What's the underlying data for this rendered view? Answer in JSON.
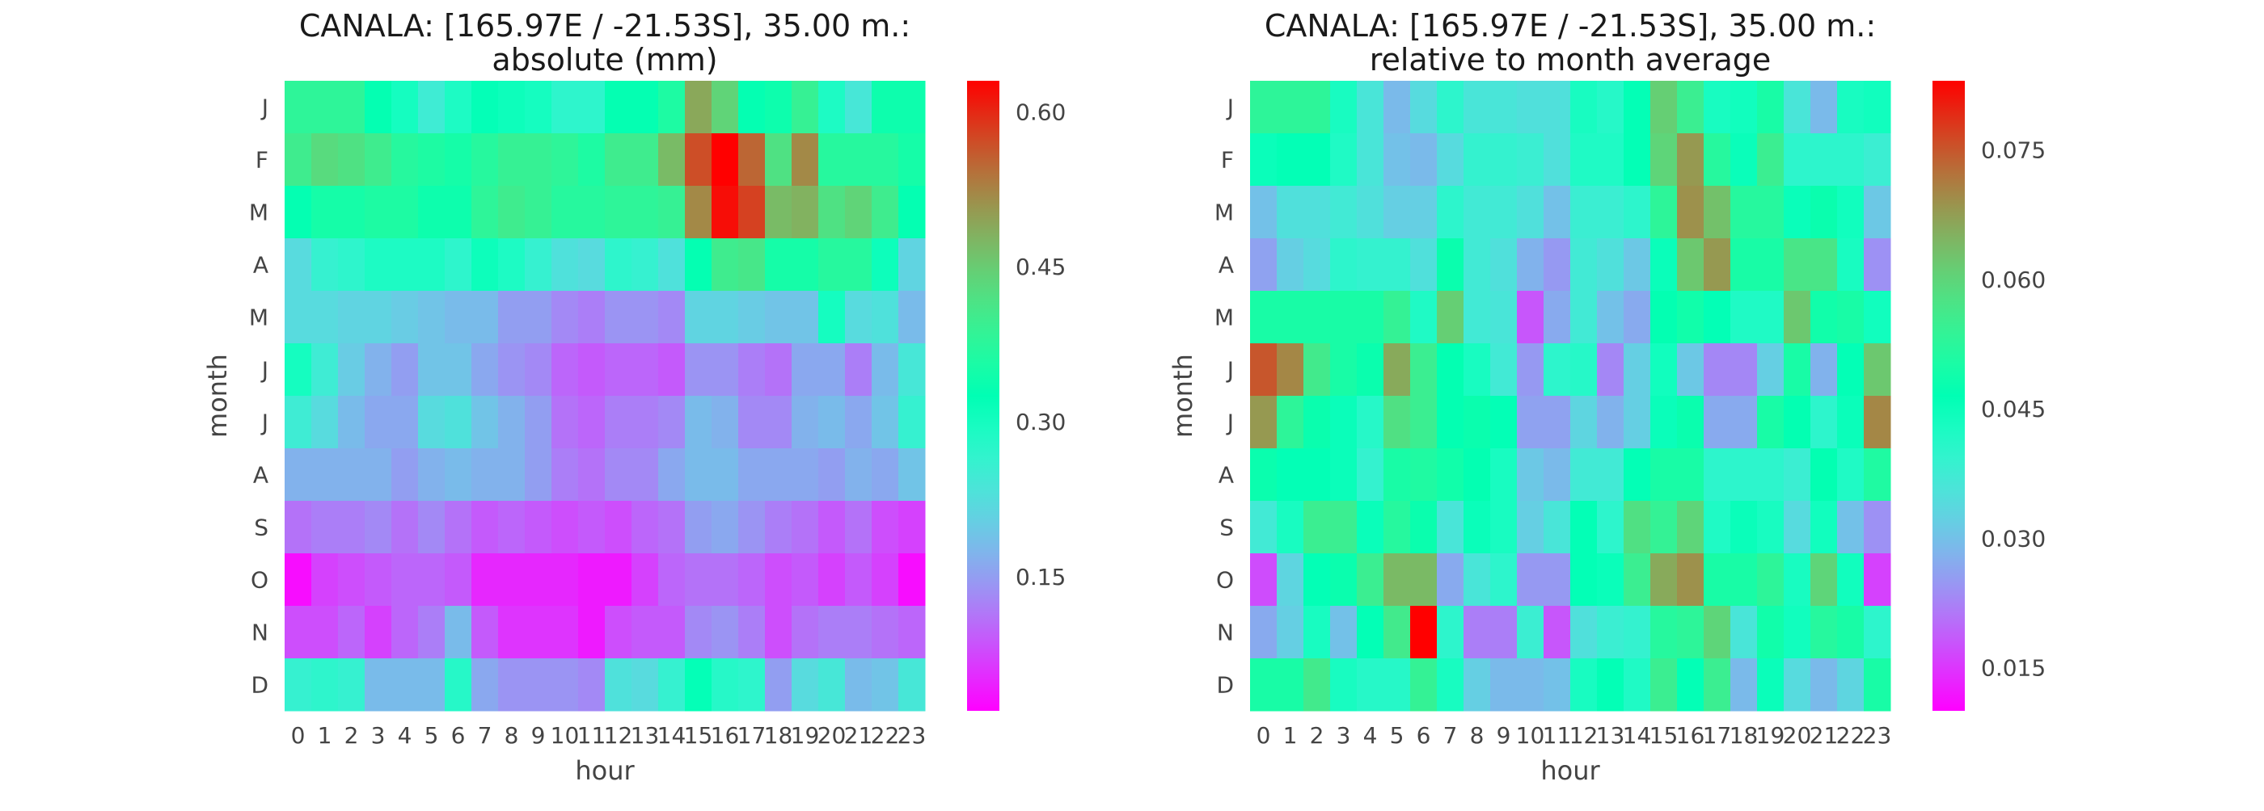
{
  "chart_data": [
    {
      "type": "heatmap",
      "title": "CANALA: [165.97E / -21.53S], 35.00 m.:",
      "subtitle": "absolute (mm)",
      "xlabel": "hour",
      "ylabel": "month",
      "x_categories": [
        "0",
        "1",
        "2",
        "3",
        "4",
        "5",
        "6",
        "7",
        "8",
        "9",
        "10",
        "11",
        "12",
        "13",
        "14",
        "15",
        "16",
        "17",
        "18",
        "19",
        "20",
        "21",
        "22",
        "23"
      ],
      "y_categories": [
        "J",
        "F",
        "M",
        "A",
        "M",
        "J",
        "J",
        "A",
        "S",
        "O",
        "N",
        "D"
      ],
      "colormap": "rainbow",
      "vmin": 0.02,
      "vmax": 0.63,
      "colorbar_ticks": [
        "0.15",
        "0.30",
        "0.45",
        "0.60"
      ],
      "colorbar_tick_values": [
        0.15,
        0.3,
        0.45,
        0.6
      ],
      "values": [
        [
          0.38,
          0.38,
          0.38,
          0.33,
          0.3,
          0.25,
          0.29,
          0.32,
          0.31,
          0.3,
          0.27,
          0.27,
          0.33,
          0.33,
          0.36,
          0.49,
          0.44,
          0.33,
          0.34,
          0.39,
          0.29,
          0.24,
          0.34,
          0.34
        ],
        [
          0.4,
          0.43,
          0.42,
          0.4,
          0.37,
          0.36,
          0.35,
          0.37,
          0.39,
          0.39,
          0.38,
          0.36,
          0.4,
          0.4,
          0.47,
          0.57,
          0.63,
          0.55,
          0.42,
          0.52,
          0.37,
          0.37,
          0.37,
          0.35
        ],
        [
          0.33,
          0.35,
          0.35,
          0.36,
          0.36,
          0.34,
          0.34,
          0.38,
          0.4,
          0.39,
          0.37,
          0.37,
          0.38,
          0.38,
          0.39,
          0.52,
          0.62,
          0.58,
          0.47,
          0.48,
          0.42,
          0.44,
          0.4,
          0.33
        ],
        [
          0.22,
          0.26,
          0.27,
          0.29,
          0.29,
          0.29,
          0.27,
          0.31,
          0.29,
          0.26,
          0.23,
          0.22,
          0.27,
          0.26,
          0.23,
          0.33,
          0.4,
          0.41,
          0.35,
          0.35,
          0.37,
          0.37,
          0.31,
          0.21
        ],
        [
          0.22,
          0.22,
          0.21,
          0.21,
          0.2,
          0.19,
          0.18,
          0.18,
          0.15,
          0.15,
          0.13,
          0.12,
          0.14,
          0.14,
          0.13,
          0.21,
          0.21,
          0.2,
          0.19,
          0.19,
          0.3,
          0.22,
          0.23,
          0.18
        ],
        [
          0.3,
          0.25,
          0.2,
          0.17,
          0.15,
          0.19,
          0.19,
          0.16,
          0.14,
          0.13,
          0.1,
          0.09,
          0.1,
          0.1,
          0.09,
          0.14,
          0.14,
          0.12,
          0.11,
          0.16,
          0.16,
          0.12,
          0.18,
          0.24
        ],
        [
          0.25,
          0.22,
          0.18,
          0.16,
          0.16,
          0.22,
          0.23,
          0.19,
          0.17,
          0.15,
          0.11,
          0.1,
          0.12,
          0.12,
          0.13,
          0.18,
          0.17,
          0.13,
          0.13,
          0.17,
          0.18,
          0.16,
          0.19,
          0.26
        ],
        [
          0.17,
          0.17,
          0.17,
          0.17,
          0.15,
          0.17,
          0.18,
          0.17,
          0.17,
          0.15,
          0.12,
          0.11,
          0.13,
          0.13,
          0.16,
          0.18,
          0.18,
          0.16,
          0.16,
          0.16,
          0.15,
          0.17,
          0.16,
          0.19
        ],
        [
          0.11,
          0.12,
          0.12,
          0.13,
          0.11,
          0.13,
          0.11,
          0.09,
          0.1,
          0.09,
          0.08,
          0.09,
          0.08,
          0.1,
          0.11,
          0.15,
          0.16,
          0.14,
          0.12,
          0.11,
          0.09,
          0.11,
          0.08,
          0.07
        ],
        [
          0.03,
          0.07,
          0.08,
          0.09,
          0.1,
          0.1,
          0.09,
          0.05,
          0.05,
          0.05,
          0.05,
          0.04,
          0.04,
          0.07,
          0.1,
          0.11,
          0.11,
          0.1,
          0.08,
          0.09,
          0.07,
          0.09,
          0.07,
          0.03
        ],
        [
          0.08,
          0.08,
          0.1,
          0.07,
          0.1,
          0.12,
          0.18,
          0.09,
          0.06,
          0.06,
          0.06,
          0.04,
          0.08,
          0.09,
          0.09,
          0.13,
          0.14,
          0.12,
          0.08,
          0.11,
          0.12,
          0.12,
          0.11,
          0.1
        ],
        [
          0.26,
          0.27,
          0.26,
          0.18,
          0.18,
          0.18,
          0.28,
          0.16,
          0.14,
          0.14,
          0.14,
          0.13,
          0.23,
          0.22,
          0.26,
          0.32,
          0.28,
          0.27,
          0.15,
          0.22,
          0.24,
          0.18,
          0.19,
          0.24
        ]
      ]
    },
    {
      "type": "heatmap",
      "title": "CANALA: [165.97E / -21.53S], 35.00 m.:",
      "subtitle": "relative to month average",
      "xlabel": "hour",
      "ylabel": "month",
      "x_categories": [
        "0",
        "1",
        "2",
        "3",
        "4",
        "5",
        "6",
        "7",
        "8",
        "9",
        "10",
        "11",
        "12",
        "13",
        "14",
        "15",
        "16",
        "17",
        "18",
        "19",
        "20",
        "21",
        "22",
        "23"
      ],
      "y_categories": [
        "J",
        "F",
        "M",
        "A",
        "M",
        "J",
        "J",
        "A",
        "S",
        "O",
        "N",
        "D"
      ],
      "colormap": "rainbow",
      "vmin": 0.01,
      "vmax": 0.083,
      "colorbar_ticks": [
        "0.015",
        "0.030",
        "0.045",
        "0.060",
        "0.075"
      ],
      "colorbar_tick_values": [
        0.015,
        0.03,
        0.045,
        0.06,
        0.075
      ],
      "values": [
        [
          0.053,
          0.053,
          0.053,
          0.043,
          0.036,
          0.029,
          0.034,
          0.04,
          0.036,
          0.036,
          0.035,
          0.035,
          0.043,
          0.041,
          0.046,
          0.061,
          0.055,
          0.043,
          0.044,
          0.05,
          0.036,
          0.029,
          0.043,
          0.044
        ],
        [
          0.045,
          0.046,
          0.046,
          0.042,
          0.036,
          0.03,
          0.029,
          0.034,
          0.039,
          0.039,
          0.038,
          0.035,
          0.042,
          0.042,
          0.046,
          0.06,
          0.068,
          0.052,
          0.045,
          0.055,
          0.04,
          0.04,
          0.04,
          0.038
        ],
        [
          0.03,
          0.035,
          0.035,
          0.037,
          0.035,
          0.032,
          0.032,
          0.04,
          0.037,
          0.037,
          0.035,
          0.03,
          0.038,
          0.038,
          0.04,
          0.053,
          0.069,
          0.063,
          0.052,
          0.052,
          0.045,
          0.048,
          0.044,
          0.031
        ],
        [
          0.026,
          0.032,
          0.034,
          0.04,
          0.039,
          0.039,
          0.035,
          0.048,
          0.037,
          0.035,
          0.028,
          0.025,
          0.037,
          0.035,
          0.031,
          0.045,
          0.062,
          0.068,
          0.05,
          0.05,
          0.057,
          0.057,
          0.043,
          0.024
        ],
        [
          0.05,
          0.05,
          0.05,
          0.05,
          0.05,
          0.054,
          0.042,
          0.061,
          0.037,
          0.036,
          0.018,
          0.027,
          0.037,
          0.03,
          0.027,
          0.047,
          0.049,
          0.046,
          0.042,
          0.042,
          0.062,
          0.049,
          0.05,
          0.044
        ],
        [
          0.075,
          0.07,
          0.056,
          0.05,
          0.048,
          0.066,
          0.055,
          0.047,
          0.043,
          0.037,
          0.025,
          0.04,
          0.041,
          0.023,
          0.032,
          0.044,
          0.031,
          0.023,
          0.023,
          0.032,
          0.05,
          0.028,
          0.046,
          0.062
        ],
        [
          0.068,
          0.053,
          0.048,
          0.045,
          0.041,
          0.058,
          0.055,
          0.047,
          0.048,
          0.046,
          0.026,
          0.026,
          0.033,
          0.028,
          0.032,
          0.045,
          0.048,
          0.027,
          0.027,
          0.05,
          0.047,
          0.04,
          0.045,
          0.07
        ],
        [
          0.048,
          0.046,
          0.046,
          0.045,
          0.039,
          0.05,
          0.051,
          0.049,
          0.047,
          0.043,
          0.031,
          0.029,
          0.037,
          0.037,
          0.046,
          0.05,
          0.05,
          0.04,
          0.04,
          0.04,
          0.038,
          0.047,
          0.042,
          0.051
        ],
        [
          0.037,
          0.043,
          0.055,
          0.055,
          0.045,
          0.052,
          0.048,
          0.036,
          0.045,
          0.043,
          0.032,
          0.036,
          0.046,
          0.04,
          0.058,
          0.054,
          0.06,
          0.042,
          0.045,
          0.043,
          0.034,
          0.044,
          0.03,
          0.024
        ],
        [
          0.017,
          0.033,
          0.046,
          0.048,
          0.055,
          0.064,
          0.064,
          0.027,
          0.036,
          0.04,
          0.025,
          0.025,
          0.046,
          0.045,
          0.055,
          0.066,
          0.069,
          0.05,
          0.05,
          0.053,
          0.043,
          0.06,
          0.044,
          0.016
        ],
        [
          0.027,
          0.032,
          0.043,
          0.03,
          0.046,
          0.056,
          0.083,
          0.04,
          0.022,
          0.022,
          0.038,
          0.018,
          0.035,
          0.038,
          0.039,
          0.052,
          0.053,
          0.06,
          0.036,
          0.049,
          0.044,
          0.052,
          0.05,
          0.04
        ],
        [
          0.05,
          0.05,
          0.056,
          0.043,
          0.041,
          0.041,
          0.054,
          0.043,
          0.032,
          0.029,
          0.029,
          0.03,
          0.043,
          0.046,
          0.042,
          0.055,
          0.046,
          0.055,
          0.029,
          0.045,
          0.034,
          0.029,
          0.033,
          0.05
        ]
      ]
    }
  ]
}
